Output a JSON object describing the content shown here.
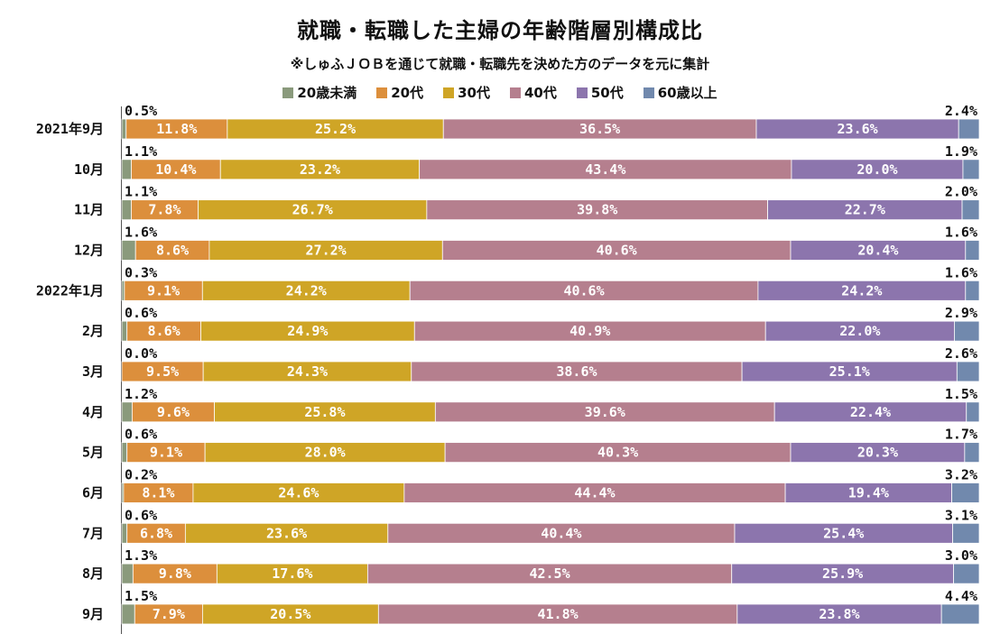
{
  "title": "就職・転職した主婦の年齢階層別構成比",
  "subtitle": "※しゅふＪＯＢを通じて就職・転職先を決めた方のデータを元に集計",
  "colors": {
    "20歳未満": "#8a9a7c",
    "20代": "#dc8f3c",
    "30代": "#cfa526",
    "40代": "#b57f8e",
    "50代": "#8c75ad",
    "60歳以上": "#7189ad"
  },
  "chart_data": {
    "type": "bar",
    "orientation": "horizontal",
    "stacked": true,
    "percent_stacked": true,
    "legend_position": "top",
    "categories": [
      "2021年9月",
      "10月",
      "11月",
      "12月",
      "2022年1月",
      "2月",
      "3月",
      "4月",
      "5月",
      "6月",
      "7月",
      "8月",
      "9月"
    ],
    "series": [
      {
        "name": "20歳未満",
        "values": [
          0.5,
          1.1,
          1.1,
          1.6,
          0.3,
          0.6,
          0.0,
          1.2,
          0.6,
          0.2,
          0.6,
          1.3,
          1.5
        ],
        "labels": [
          "0.5%",
          "1.1%",
          "1.1%",
          "1.6%",
          "0.3%",
          "0.6%",
          "0.0%",
          "1.2%",
          "0.6%",
          "0.2%",
          "0.6%",
          "1.3%",
          "1.5%"
        ]
      },
      {
        "name": "20代",
        "values": [
          11.8,
          10.4,
          7.8,
          8.6,
          9.1,
          8.6,
          9.5,
          9.6,
          9.1,
          8.1,
          6.8,
          9.8,
          7.9
        ],
        "labels": [
          "11.8%",
          "10.4%",
          "7.8%",
          "8.6%",
          "9.1%",
          "8.6%",
          "9.5%",
          "9.6%",
          "9.1%",
          "8.1%",
          "6.8%",
          "9.8%",
          "7.9%"
        ]
      },
      {
        "name": "30代",
        "values": [
          25.2,
          23.2,
          26.7,
          27.2,
          24.2,
          24.9,
          24.3,
          25.8,
          28.0,
          24.6,
          23.6,
          17.6,
          20.5
        ],
        "labels": [
          "25.2%",
          "23.2%",
          "26.7%",
          "27.2%",
          "24.2%",
          "24.9%",
          "24.3%",
          "25.8%",
          "28.0%",
          "24.6%",
          "23.6%",
          "17.6%",
          "20.5%"
        ]
      },
      {
        "name": "40代",
        "values": [
          36.5,
          43.4,
          39.8,
          40.6,
          40.6,
          40.9,
          38.6,
          39.6,
          40.3,
          44.4,
          40.4,
          42.5,
          41.8
        ],
        "labels": [
          "36.5%",
          "43.4%",
          "39.8%",
          "40.6%",
          "40.6%",
          "40.9%",
          "38.6%",
          "39.6%",
          "40.3%",
          "44.4%",
          "40.4%",
          "42.5%",
          "41.8%"
        ]
      },
      {
        "name": "50代",
        "values": [
          23.6,
          20.0,
          22.7,
          20.4,
          24.2,
          22.0,
          25.1,
          22.4,
          20.3,
          19.4,
          25.4,
          25.9,
          23.8
        ],
        "labels": [
          "23.6%",
          "20.0%",
          "22.7%",
          "20.4%",
          "24.2%",
          "22.0%",
          "25.1%",
          "22.4%",
          "20.3%",
          "19.4%",
          "25.4%",
          "25.9%",
          "23.8%"
        ]
      },
      {
        "name": "60歳以上",
        "values": [
          2.4,
          1.9,
          2.0,
          1.6,
          1.6,
          2.9,
          2.6,
          1.5,
          1.7,
          3.2,
          3.1,
          3.0,
          4.4
        ],
        "labels": [
          "2.4%",
          "1.9%",
          "2.0%",
          "1.6%",
          "1.6%",
          "2.9%",
          "2.6%",
          "1.5%",
          "1.7%",
          "3.2%",
          "3.1%",
          "3.0%",
          "4.4%"
        ]
      }
    ],
    "xlim": [
      0,
      100
    ],
    "grid": false
  }
}
